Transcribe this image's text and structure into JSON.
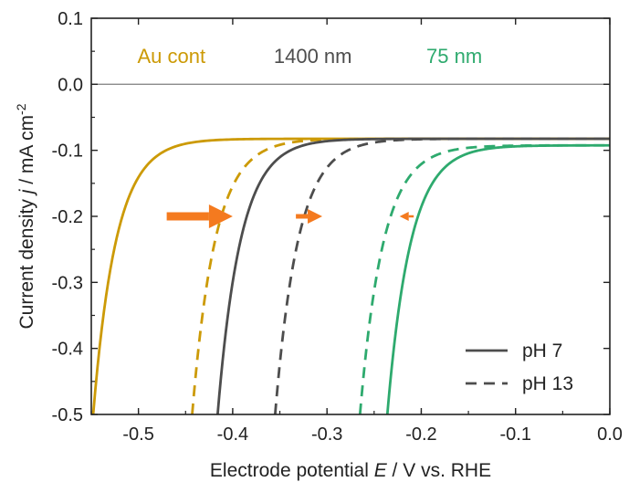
{
  "chart_data": {
    "type": "line",
    "xlabel": {
      "pre": "Electrode potential ",
      "italic": "E",
      "post": " / V vs. RHE"
    },
    "ylabel": {
      "pre": "Current density ",
      "italic": "j",
      "post": " / mA cm",
      "sup": "-2"
    },
    "xlim": [
      -0.55,
      0.0
    ],
    "ylim": [
      -0.5,
      0.1
    ],
    "xticks": [
      -0.5,
      -0.4,
      -0.3,
      -0.2,
      -0.1,
      0.0
    ],
    "xtick_labels": [
      "-0.5",
      "-0.4",
      "-0.3",
      "-0.2",
      "-0.1",
      "0.0"
    ],
    "yticks": [
      0.1,
      0.0,
      -0.1,
      -0.2,
      -0.3,
      -0.4,
      -0.5
    ],
    "ytick_labels": [
      "0.1",
      "0.0",
      "-0.1",
      "-0.2",
      "-0.3",
      "-0.4",
      "-0.5"
    ],
    "grid": false,
    "zero_line": 0.0,
    "series_labels": [
      {
        "text": "Au cont",
        "color": "#CC9A06",
        "x": -0.465,
        "y": 0.032
      },
      {
        "text": "1400 nm",
        "color": "#4D4D4D",
        "x": -0.315,
        "y": 0.032
      },
      {
        "text": "75 nm",
        "color": "#2EAA6E",
        "x": -0.165,
        "y": 0.032
      }
    ],
    "series": [
      {
        "group": "Au cont",
        "condition": "pH 7",
        "style": "solid",
        "color": "#CC9A06",
        "onset": -0.0825,
        "E0": -0.548,
        "j0": -0.5,
        "k": 41
      },
      {
        "group": "Au cont",
        "condition": "pH 13",
        "style": "dashed",
        "color": "#CC9A06",
        "onset": -0.0825,
        "E0": -0.443,
        "j0": -0.5,
        "k": 41
      },
      {
        "group": "1400 nm",
        "condition": "pH 7",
        "style": "solid",
        "color": "#4D4D4D",
        "onset": -0.0825,
        "E0": -0.416,
        "j0": -0.5,
        "k": 41
      },
      {
        "group": "1400 nm",
        "condition": "pH 13",
        "style": "dashed",
        "color": "#4D4D4D",
        "onset": -0.0825,
        "E0": -0.355,
        "j0": -0.5,
        "k": 41
      },
      {
        "group": "75 nm",
        "condition": "pH 13",
        "style": "dashed",
        "color": "#2EAA6E",
        "onset": -0.0925,
        "E0": -0.265,
        "j0": -0.5,
        "k": 41
      },
      {
        "group": "75 nm",
        "condition": "pH 7",
        "style": "solid",
        "color": "#2EAA6E",
        "onset": -0.0925,
        "E0": -0.236,
        "j0": -0.5,
        "k": 41
      }
    ],
    "shift_arrows": [
      {
        "from": -0.47,
        "to": -0.4,
        "y": -0.2,
        "color": "#F47A1F",
        "weight": "large"
      },
      {
        "from": -0.333,
        "to": -0.305,
        "y": -0.2,
        "color": "#F47A1F",
        "weight": "medium"
      },
      {
        "from": -0.208,
        "to": -0.223,
        "y": -0.2,
        "color": "#F47A1F",
        "weight": "small"
      }
    ],
    "legend": {
      "position": "bottom-right",
      "entries": [
        {
          "label": "pH 7",
          "style": "solid"
        },
        {
          "label": "pH 13",
          "style": "dashed"
        }
      ],
      "color": "#4D4D4D"
    }
  }
}
